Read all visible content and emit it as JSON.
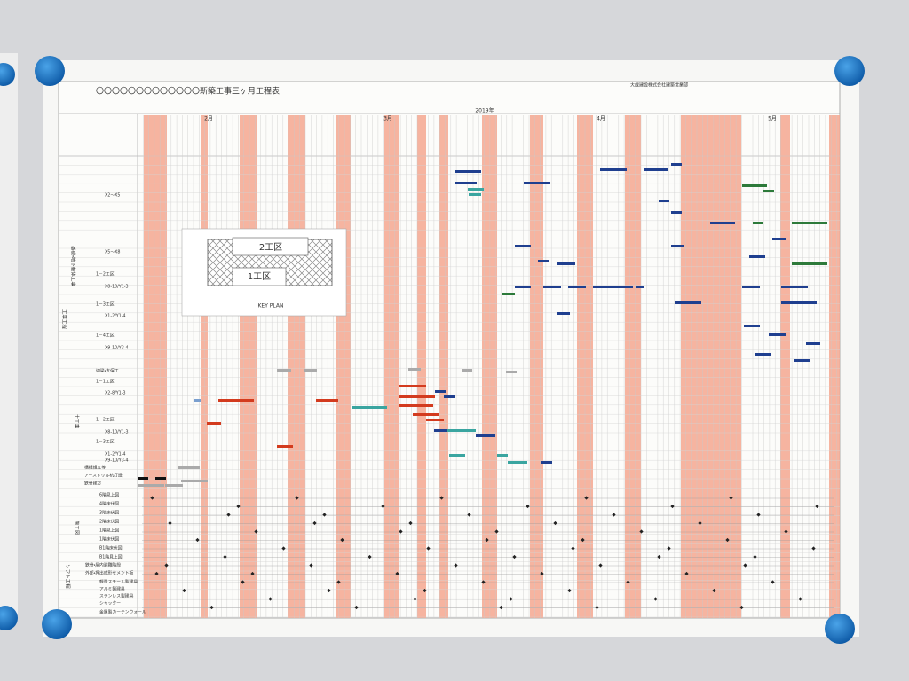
{
  "header": {
    "title": "〇〇〇〇〇〇〇〇〇〇〇〇〇新築工事三ヶ月工程表",
    "company": "大成建設株式会社建築営業部"
  },
  "timeline": {
    "year": "2019年",
    "months": [
      "2月",
      "3月",
      "4月",
      "5月"
    ]
  },
  "sections": [
    "工事工程",
    "基礎・地下躯体工事",
    "土工事",
    "施工図",
    "ソフト工程"
  ],
  "rows": [
    "X2～X5",
    "X5～X8",
    "1－2工区",
    "X8-10/Y1-3",
    "1－3工区",
    "X1-2/Y1-4",
    "1－4工区",
    "X9-10/Y3-4",
    "切梁・支保工",
    "1－1工区",
    "X2-8/Y1-3",
    "1－2工区",
    "X8-10/Y1-3",
    "1－3工区",
    "X1-2/Y1-4",
    "X9-10/Y3-4",
    "構構組立等",
    "アースドリル杭打設",
    "鉄骨建方",
    "6階見上図",
    "4階床伏図",
    "3階床伏図",
    "2階床伏図",
    "1階見上図",
    "1階床伏図",
    "B1階床伏図",
    "B1階見上図",
    "鉄骨・屋内避難階段",
    "外部・押出成形セメント板",
    "軽量スチール製建具",
    "アルミ製建具",
    "ステンレス製建具",
    "シャッター",
    "金属製カーテンウォール"
  ],
  "key_plan": {
    "zone2": "2工区",
    "zone1": "1工区",
    "caption": "KEY PLAN"
  }
}
